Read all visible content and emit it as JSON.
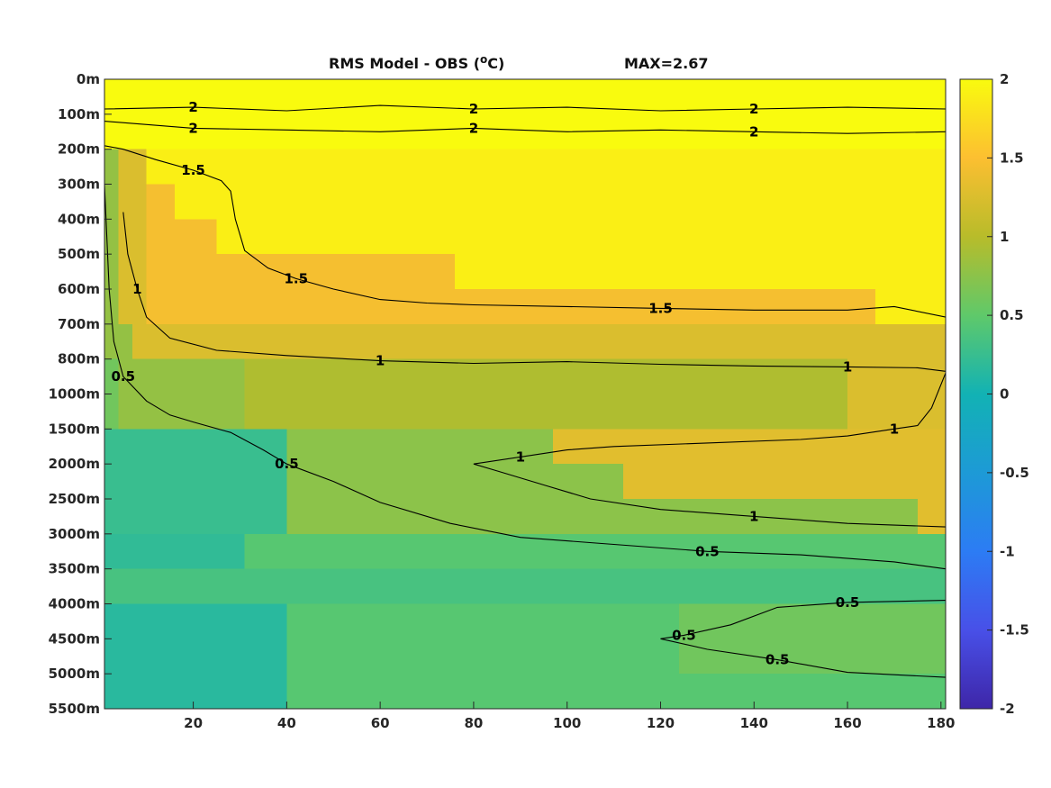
{
  "chart_data": {
    "type": "heatmap",
    "title": "RMS Model - OBS (",
    "title_unit_sup": "o",
    "title_unit": "C)",
    "max_label": "MAX=2.67",
    "x": {
      "min": 1,
      "max": 181,
      "ticks": [
        20,
        40,
        60,
        80,
        100,
        120,
        140,
        160,
        180
      ],
      "tick_labels": [
        "20",
        "40",
        "60",
        "80",
        "100",
        "120",
        "140",
        "160",
        "180"
      ]
    },
    "y": {
      "levels": [
        0,
        100,
        200,
        300,
        400,
        500,
        600,
        700,
        800,
        1000,
        1500,
        2000,
        2500,
        3000,
        3500,
        4000,
        4500,
        5000,
        5500
      ],
      "tick_labels": [
        "0m",
        "100m",
        "200m",
        "300m",
        "400m",
        "500m",
        "600m",
        "700m",
        "800m",
        "1000m",
        "1500m",
        "2000m",
        "2500m",
        "3000m",
        "3500m",
        "4000m",
        "4500m",
        "5000m",
        "5500m"
      ],
      "reversed": true,
      "scale": "index (non-uniform depth levels)"
    },
    "colorbar": {
      "range": [
        -2,
        2
      ],
      "ticks": [
        2,
        1.5,
        1,
        0.5,
        0,
        -0.5,
        -1,
        -1.5,
        -2
      ],
      "tick_labels": [
        "2",
        "1.5",
        "1",
        "0.5",
        "0",
        "-0.5",
        "-1",
        "-1.5",
        "-2"
      ],
      "colormap": "parula"
    },
    "contour_levels": [
      0.5,
      1,
      1.5,
      2
    ],
    "contours": [
      {
        "level": 2,
        "points": [
          [
            1,
            85
          ],
          [
            20,
            80
          ],
          [
            40,
            90
          ],
          [
            60,
            75
          ],
          [
            80,
            85
          ],
          [
            100,
            80
          ],
          [
            120,
            90
          ],
          [
            140,
            85
          ],
          [
            160,
            80
          ],
          [
            181,
            85
          ]
        ]
      },
      {
        "level": 2,
        "points": [
          [
            1,
            120
          ],
          [
            20,
            140
          ],
          [
            40,
            145
          ],
          [
            60,
            150
          ],
          [
            80,
            140
          ],
          [
            100,
            150
          ],
          [
            120,
            145
          ],
          [
            140,
            150
          ],
          [
            160,
            155
          ],
          [
            181,
            150
          ]
        ]
      },
      {
        "level": 1.5,
        "points": [
          [
            1,
            190
          ],
          [
            5,
            200
          ],
          [
            12,
            230
          ],
          [
            20,
            260
          ],
          [
            26,
            290
          ],
          [
            28,
            320
          ],
          [
            29,
            400
          ],
          [
            31,
            490
          ],
          [
            36,
            540
          ],
          [
            42,
            570
          ],
          [
            50,
            600
          ],
          [
            60,
            630
          ],
          [
            70,
            640
          ],
          [
            80,
            645
          ],
          [
            100,
            650
          ],
          [
            120,
            655
          ],
          [
            140,
            660
          ],
          [
            160,
            660
          ],
          [
            170,
            650
          ],
          [
            181,
            680
          ]
        ]
      },
      {
        "level": 1,
        "points": [
          [
            5,
            380
          ],
          [
            6,
            500
          ],
          [
            8,
            600
          ],
          [
            10,
            680
          ],
          [
            15,
            740
          ],
          [
            25,
            775
          ],
          [
            40,
            790
          ],
          [
            60,
            810
          ],
          [
            80,
            825
          ],
          [
            100,
            815
          ],
          [
            120,
            830
          ],
          [
            140,
            840
          ],
          [
            160,
            845
          ],
          [
            175,
            850
          ],
          [
            181,
            870
          ]
        ]
      },
      {
        "level": 1,
        "points": [
          [
            181,
            880
          ],
          [
            178,
            1200
          ],
          [
            175,
            1450
          ],
          [
            170,
            1500
          ],
          [
            160,
            1600
          ],
          [
            150,
            1650
          ],
          [
            130,
            1700
          ],
          [
            110,
            1750
          ],
          [
            100,
            1800
          ],
          [
            90,
            1900
          ],
          [
            80,
            2000
          ],
          [
            85,
            2100
          ],
          [
            95,
            2300
          ],
          [
            105,
            2500
          ],
          [
            120,
            2650
          ],
          [
            140,
            2750
          ],
          [
            160,
            2850
          ],
          [
            181,
            2900
          ]
        ]
      },
      {
        "level": 0.5,
        "points": [
          [
            1,
            300
          ],
          [
            2,
            600
          ],
          [
            3,
            750
          ],
          [
            5,
            900
          ],
          [
            10,
            1100
          ],
          [
            15,
            1300
          ],
          [
            20,
            1400
          ],
          [
            28,
            1550
          ],
          [
            35,
            1800
          ],
          [
            40,
            2000
          ],
          [
            50,
            2250
          ],
          [
            60,
            2550
          ],
          [
            75,
            2850
          ],
          [
            90,
            3050
          ],
          [
            110,
            3150
          ],
          [
            130,
            3250
          ],
          [
            150,
            3300
          ],
          [
            170,
            3400
          ],
          [
            181,
            3500
          ]
        ]
      },
      {
        "level": 0.5,
        "points": [
          [
            181,
            3950
          ],
          [
            160,
            3980
          ],
          [
            145,
            4050
          ],
          [
            135,
            4300
          ],
          [
            125,
            4450
          ],
          [
            120,
            4500
          ],
          [
            130,
            4650
          ],
          [
            145,
            4800
          ],
          [
            160,
            4980
          ],
          [
            181,
            5050
          ]
        ]
      }
    ]
  }
}
